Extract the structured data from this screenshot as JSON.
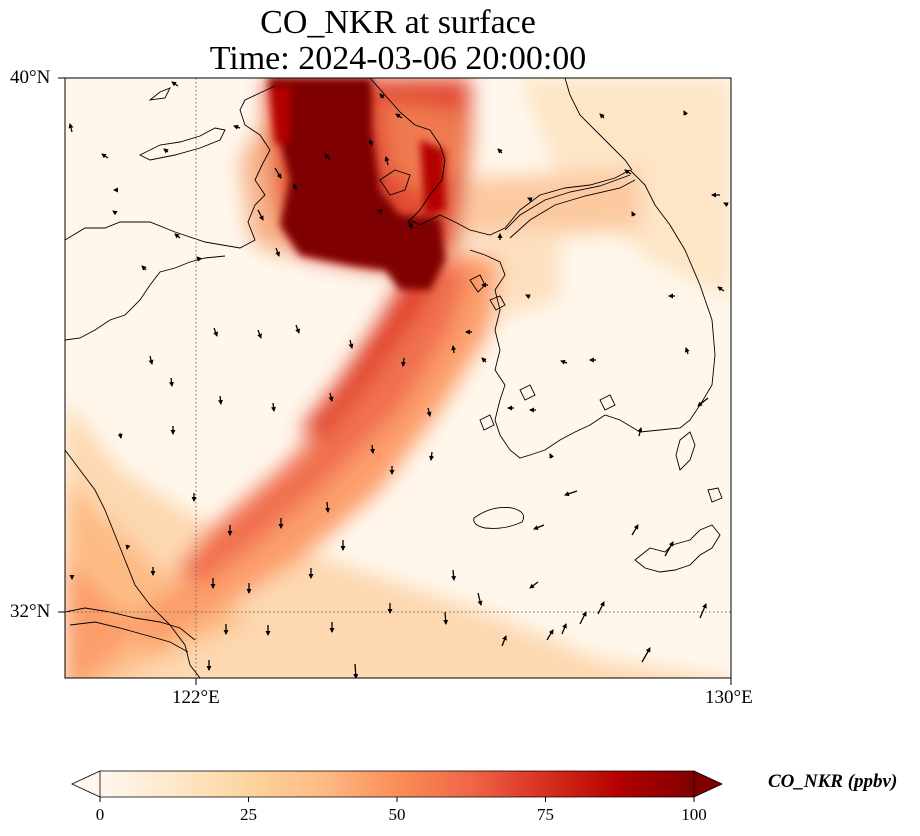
{
  "title": {
    "line1": "CO_NKR at surface",
    "line2": "Time: 2024-03-06 20:00:00"
  },
  "map": {
    "extent": {
      "lon_min": 119.8,
      "lon_max": 130,
      "lat_min": 31,
      "lat_max": 40
    },
    "lat_ticks": [
      {
        "value": 40,
        "label": "40°N"
      },
      {
        "value": 32,
        "label": "32°N"
      }
    ],
    "lon_ticks": [
      {
        "value": 122,
        "label": "122°E"
      },
      {
        "value": 130,
        "label": "130°E"
      }
    ],
    "gridlines": "dotted"
  },
  "colorbar": {
    "variable_label": "CO_NKR (ppbv)",
    "min": 0,
    "max": 100,
    "extend": "both",
    "colormap": "OrRd",
    "ticks": [
      {
        "value": 0,
        "label": "0"
      },
      {
        "value": 25,
        "label": "25"
      },
      {
        "value": 50,
        "label": "50"
      },
      {
        "value": 75,
        "label": "75"
      },
      {
        "value": 100,
        "label": "100"
      }
    ],
    "colors": [
      "#fff7ec",
      "#fee8c8",
      "#fdd49e",
      "#fdbb84",
      "#fc8d59",
      "#ef6548",
      "#d7301f",
      "#b30000",
      "#7f0000"
    ]
  }
}
